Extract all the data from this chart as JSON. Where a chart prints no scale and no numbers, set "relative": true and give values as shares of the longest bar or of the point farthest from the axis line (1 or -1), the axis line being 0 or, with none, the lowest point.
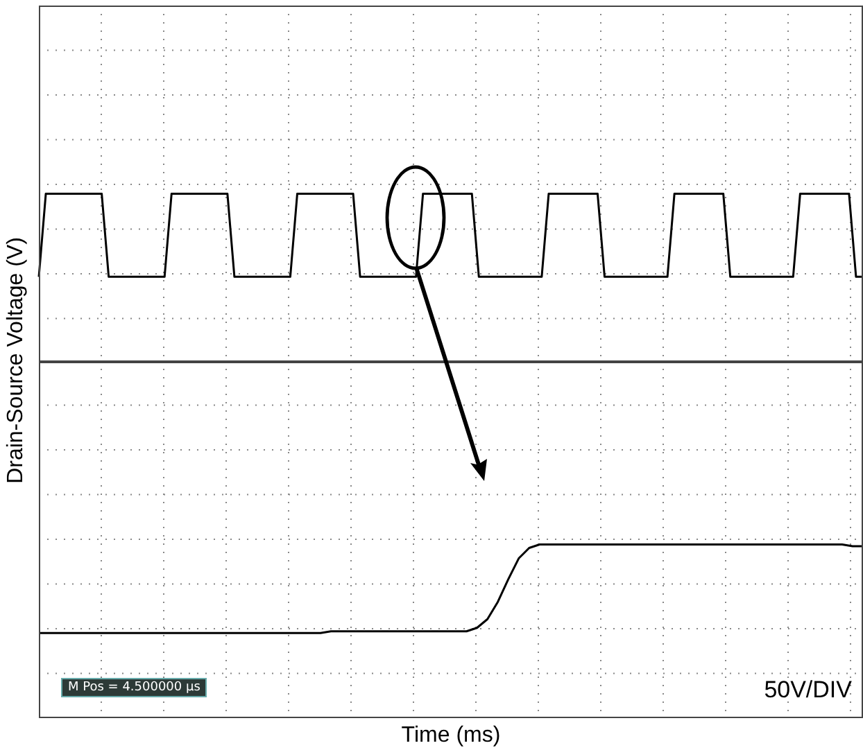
{
  "chart_data": [
    {
      "type": "line",
      "relative": true,
      "ylabel": "Drain-Source Voltage (V)",
      "grid": true,
      "categories": [
        null,
        null,
        null,
        null,
        null,
        null,
        null,
        null,
        null,
        null,
        null,
        null,
        null,
        null,
        null,
        null,
        null,
        null,
        null,
        null,
        null,
        null,
        null,
        null,
        null,
        null,
        null,
        null,
        null,
        null,
        null,
        null,
        null,
        null,
        null,
        null,
        null,
        null,
        null,
        null,
        null,
        null,
        null,
        null,
        null,
        null,
        null,
        null,
        null,
        null,
        null,
        null,
        null,
        null,
        null,
        null,
        null,
        null,
        null,
        null,
        null,
        null,
        null,
        null,
        null,
        null,
        null,
        null,
        null,
        null,
        null,
        null,
        null,
        null,
        null,
        null,
        null,
        null,
        null,
        null,
        null,
        null,
        null,
        null,
        null,
        null,
        null,
        null,
        null,
        null,
        null,
        null,
        null,
        null,
        null,
        null,
        null,
        null,
        null,
        null,
        null,
        null,
        null,
        null,
        null,
        null,
        null,
        null,
        null,
        null,
        null,
        null,
        null,
        null,
        null,
        null,
        null,
        null,
        null
      ],
      "series": [
        {
          "color": "#000000",
          "values": [
            0.51,
            1,
            1,
            1,
            1,
            1,
            1,
            1,
            1,
            1,
            0.51,
            0.51,
            0.51,
            0.51,
            0.51,
            0.51,
            0.51,
            0.51,
            0.51,
            1,
            1,
            1,
            1,
            1,
            1,
            1,
            1,
            1,
            0.51,
            0.51,
            0.51,
            0.51,
            0.51,
            0.51,
            0.51,
            0.51,
            0.51,
            1,
            1,
            1,
            1,
            1,
            1,
            1,
            1,
            1,
            0.51,
            0.51,
            0.51,
            0.51,
            0.51,
            0.51,
            0.51,
            0.51,
            0.51,
            1,
            1,
            1,
            1,
            1,
            1,
            1,
            1,
            0.51,
            0.51,
            0.51,
            0.51,
            0.51,
            0.51,
            0.51,
            0.51,
            0.51,
            0.51,
            1,
            1,
            1,
            1,
            1,
            1,
            1,
            1,
            0.51,
            0.51,
            0.51,
            0.51,
            0.51,
            0.51,
            0.51,
            0.51,
            0.51,
            0.51,
            1,
            1,
            1,
            1,
            1,
            1,
            1,
            1,
            0.51,
            0.51,
            0.51,
            0.51,
            0.51,
            0.51,
            0.51,
            0.51,
            0.51,
            0.51,
            1,
            1,
            1,
            1,
            1,
            1,
            1,
            1,
            0.51,
            0.51
          ]
        }
      ]
    },
    {
      "type": "line",
      "relative": true,
      "xlabel": "Time (ms)",
      "grid": true,
      "annotations": [
        "M Pos = 4.500000 µs",
        "50V/DIV"
      ],
      "categories": [
        null,
        null,
        null,
        null,
        null,
        null,
        null,
        null,
        null,
        null,
        null,
        null,
        null,
        null,
        null,
        null,
        null,
        null,
        null,
        null,
        null,
        null,
        null,
        null,
        null,
        null,
        null,
        null,
        null,
        null,
        null,
        null,
        null,
        null,
        null,
        null,
        null,
        null,
        null,
        null,
        null,
        null,
        null,
        null,
        null,
        null,
        null,
        null,
        null,
        null,
        null,
        null,
        null,
        null,
        null,
        null,
        null,
        null,
        null,
        null,
        null,
        null,
        null,
        null,
        null,
        null,
        null,
        null,
        null,
        null,
        null,
        null,
        null,
        null,
        null,
        null,
        null,
        null,
        null,
        null
      ],
      "series": [
        {
          "color": "#000000",
          "values": [
            0.49,
            0.49,
            0.49,
            0.49,
            0.49,
            0.49,
            0.49,
            0.49,
            0.49,
            0.49,
            0.49,
            0.49,
            0.49,
            0.49,
            0.49,
            0.49,
            0.49,
            0.49,
            0.49,
            0.49,
            0.49,
            0.49,
            0.49,
            0.49,
            0.49,
            0.49,
            0.49,
            0.49,
            0.5,
            0.5,
            0.5,
            0.5,
            0.5,
            0.5,
            0.5,
            0.5,
            0.5,
            0.5,
            0.5,
            0.5,
            0.5,
            0.5,
            0.52,
            0.57,
            0.67,
            0.8,
            0.92,
            0.98,
            1,
            1,
            1,
            1,
            1,
            1,
            1,
            1,
            1,
            1,
            1,
            1,
            1,
            1,
            1,
            1,
            1,
            1,
            1,
            1,
            1,
            1,
            1,
            1,
            1,
            1,
            1,
            1,
            1,
            1,
            0.99,
            0.99
          ]
        }
      ]
    }
  ]
}
